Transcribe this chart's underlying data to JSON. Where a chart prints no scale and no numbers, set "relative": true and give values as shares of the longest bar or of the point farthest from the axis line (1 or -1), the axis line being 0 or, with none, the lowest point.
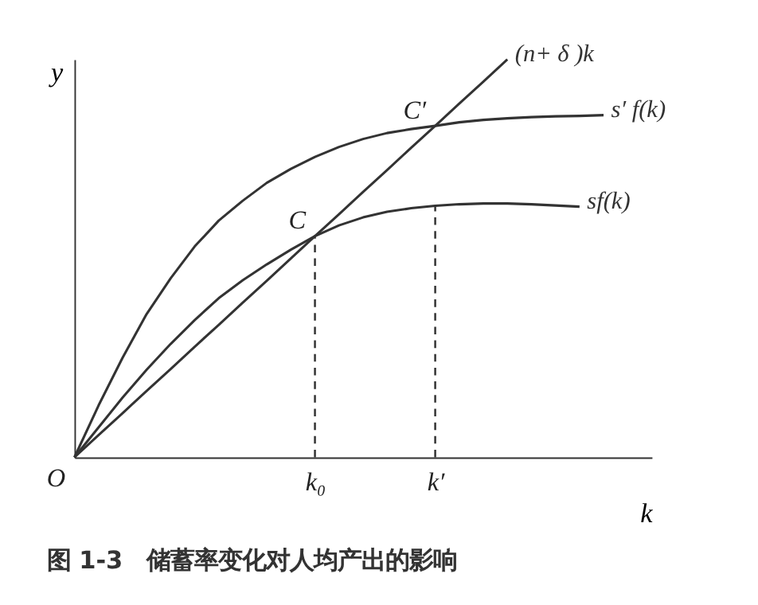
{
  "chart_data": {
    "type": "line",
    "relative": true,
    "title": "图 1-3　储蓄率变化对人均产出的影响",
    "xlabel": "k",
    "ylabel": "y",
    "tick_labels": "x",
    "grid": false,
    "marker": "none",
    "categories": [
      null,
      null,
      null,
      null,
      null,
      null,
      null,
      null,
      null,
      null,
      "k₀",
      null,
      null,
      null,
      null,
      "k′",
      null,
      null,
      null,
      null,
      null,
      null,
      null,
      null,
      null
    ],
    "series": [
      {
        "name": "(n+ δ )k",
        "color": "#333333",
        "values": [
          0,
          0.056,
          0.111,
          0.167,
          0.222,
          0.278,
          0.333,
          0.389,
          0.444,
          0.5,
          0.556,
          0.611,
          0.667,
          0.722,
          0.778,
          0.833,
          0.889,
          0.944,
          1.0,
          null,
          null,
          null,
          null,
          null,
          null
        ]
      },
      {
        "name": "s′ f(k)",
        "color": "#333333",
        "values": [
          0,
          0.13,
          0.25,
          0.36,
          0.45,
          0.53,
          0.595,
          0.645,
          0.69,
          0.725,
          0.755,
          0.78,
          0.8,
          0.815,
          0.825,
          0.833,
          0.842,
          0.848,
          0.852,
          0.855,
          0.857,
          0.858,
          0.86,
          null,
          null
        ]
      },
      {
        "name": "sf(k)",
        "color": "#333333",
        "values": [
          0,
          0.075,
          0.15,
          0.22,
          0.285,
          0.345,
          0.4,
          0.445,
          0.485,
          0.522,
          0.556,
          0.583,
          0.603,
          0.617,
          0.626,
          0.632,
          0.636,
          0.638,
          0.638,
          0.636,
          0.633,
          0.63,
          null,
          null,
          null
        ]
      }
    ],
    "ref_lines": [
      {
        "axis": "x",
        "value": "k₀",
        "color": "#333333",
        "line_style": "dashed"
      },
      {
        "axis": "x",
        "value": "k′",
        "color": "#333333",
        "line_style": "dashed"
      }
    ],
    "annotations": [
      {
        "text": "C",
        "x": "k₀",
        "y": 0.556
      },
      {
        "text": "C′",
        "x": "k′",
        "y": 0.833
      },
      "O"
    ]
  }
}
